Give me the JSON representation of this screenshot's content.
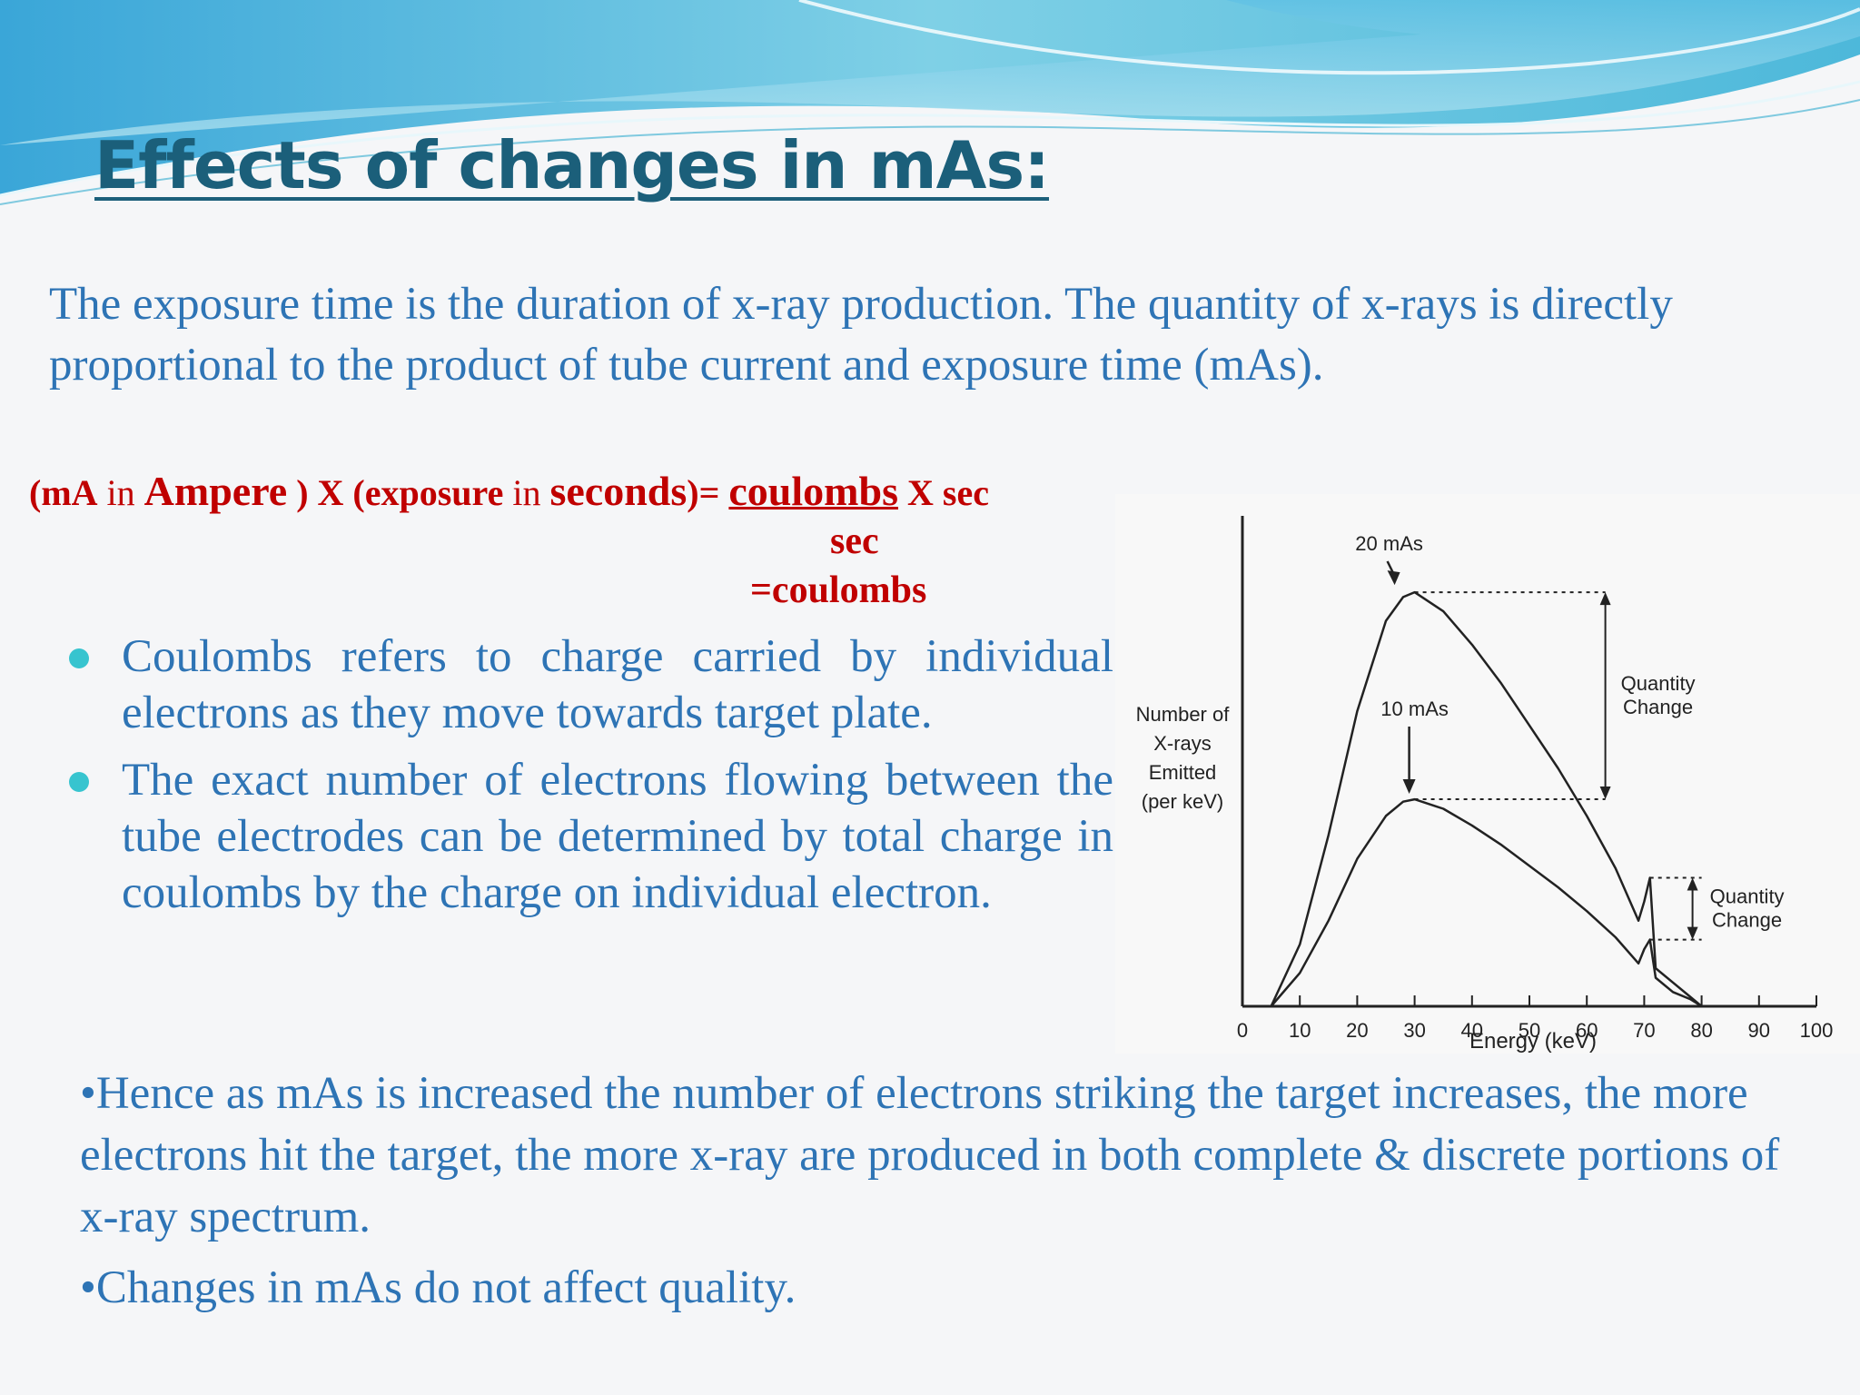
{
  "title": "Effects of changes in mAs:",
  "intro": "The exposure time is the duration of x-ray production. The quantity of x-rays is directly proportional to the product of tube current and exposure time (mAs).",
  "formula": {
    "p1": "(mA",
    "p2": " in ",
    "p3": "Ampere",
    "p4": " ) X (exposure",
    "p5": " in ",
    "p6": "seconds",
    "p7": ")= ",
    "p8": "coulombs",
    "p9": "  X sec",
    "line2": "sec",
    "line3": "=coulombs"
  },
  "bullets": [
    "Coulombs refers to charge carried by individual electrons as they move towards target plate.",
    "The exact number of electrons flowing between the tube electrodes  can be determined by total charge in coulombs by the charge on individual electron."
  ],
  "bottom": [
    "•Hence as mAs is increased the number of electrons striking the target increases, the more electrons hit the target, the more x-ray are produced in both complete & discrete portions of x-ray spectrum.",
    "•Changes in mAs do not affect quality."
  ],
  "chart_data": {
    "type": "line",
    "xlabel": "Energy (keV)",
    "ylabel": [
      "Number of",
      "X-rays",
      "Emitted",
      "(per keV)"
    ],
    "xlim": [
      0,
      100
    ],
    "x_ticks": [
      "0",
      "10",
      "20",
      "30",
      "40",
      "50",
      "60",
      "70",
      "80",
      "90",
      "100"
    ],
    "ylim": [
      0,
      100
    ],
    "grid": false,
    "series": [
      {
        "name": "20 mAs",
        "x": [
          5,
          10,
          15,
          20,
          25,
          28,
          30,
          35,
          40,
          45,
          50,
          55,
          60,
          65,
          69,
          70,
          71,
          72,
          75,
          78,
          80
        ],
        "y": [
          0,
          13,
          36,
          62,
          81,
          86,
          87,
          83,
          76,
          68,
          59,
          50,
          40,
          29,
          18,
          22,
          27,
          8,
          5,
          2,
          0
        ]
      },
      {
        "name": "10 mAs",
        "x": [
          5,
          10,
          15,
          20,
          25,
          28,
          30,
          35,
          40,
          45,
          50,
          55,
          60,
          65,
          69,
          70,
          71,
          72,
          75,
          78,
          80
        ],
        "y": [
          0,
          7,
          18,
          31,
          40,
          43,
          43.5,
          41.5,
          38,
          34,
          29.5,
          25,
          20,
          14.5,
          9,
          12,
          14,
          6,
          3,
          1.5,
          0
        ]
      }
    ],
    "annotations": [
      "20 mAs",
      "10 mAs",
      "Quantity Change",
      "Quantity Change"
    ],
    "colors": {
      "line": "#222222",
      "background": "#f8f8f8"
    }
  }
}
